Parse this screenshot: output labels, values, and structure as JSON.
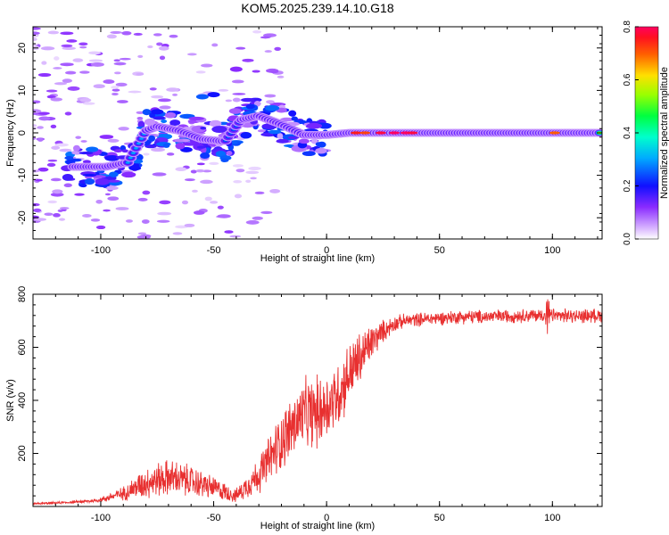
{
  "chart_data": [
    {
      "type": "heatmap",
      "title": "KOM5.2025.239.14.10.G18",
      "xlabel": "Height of straight line (km)",
      "ylabel": "Frequency (Hz)",
      "xlim": [
        -130,
        122
      ],
      "ylim": [
        -25,
        25
      ],
      "xticks": [
        -100,
        -50,
        0,
        50,
        100
      ],
      "yticks": [
        -20,
        -10,
        0,
        10,
        20
      ],
      "colorbar": {
        "label": "Normalized spectral amplitude",
        "range": [
          0,
          0.8
        ],
        "ticks": [
          "0.0",
          "0.2",
          "0.4",
          "0.6",
          "0.8"
        ]
      },
      "ridge": [
        {
          "x": -110,
          "y": -8.0,
          "amp": 0.35
        },
        {
          "x": -98,
          "y": -8.0,
          "amp": 0.35
        },
        {
          "x": -88,
          "y": -7.0,
          "amp": 0.3
        },
        {
          "x": -80,
          "y": 0.5,
          "amp": 0.3
        },
        {
          "x": -75,
          "y": 1.5,
          "amp": 0.35
        },
        {
          "x": -65,
          "y": 0.5,
          "amp": 0.3
        },
        {
          "x": -55,
          "y": -1.5,
          "amp": 0.3
        },
        {
          "x": -45,
          "y": -2.0,
          "amp": 0.25
        },
        {
          "x": -38,
          "y": 3.0,
          "amp": 0.25
        },
        {
          "x": -30,
          "y": 4.0,
          "amp": 0.3
        },
        {
          "x": -20,
          "y": 2.0,
          "amp": 0.3
        },
        {
          "x": -10,
          "y": -0.5,
          "amp": 0.35
        },
        {
          "x": 0,
          "y": -0.5,
          "amp": 0.35
        },
        {
          "x": 10,
          "y": 0.0,
          "amp": 0.55
        },
        {
          "x": 20,
          "y": 0.0,
          "amp": 0.7
        },
        {
          "x": 30,
          "y": 0.0,
          "amp": 0.75
        },
        {
          "x": 40,
          "y": 0.0,
          "amp": 0.65
        },
        {
          "x": 60,
          "y": 0.0,
          "amp": 0.5
        },
        {
          "x": 80,
          "y": 0.0,
          "amp": 0.5
        },
        {
          "x": 100,
          "y": 0.0,
          "amp": 0.6
        },
        {
          "x": 120,
          "y": 0.0,
          "amp": 0.55
        }
      ]
    },
    {
      "type": "line",
      "xlabel": "Height of straight line (km)",
      "ylabel": "SNR (v/v)",
      "xlim": [
        -130,
        122
      ],
      "ylim": [
        0,
        800
      ],
      "xticks": [
        -100,
        -50,
        0,
        50,
        100
      ],
      "yticks": [
        200,
        400,
        600,
        800
      ],
      "color": "#e83030",
      "series": [
        {
          "name": "SNR",
          "x": [
            -130,
            -115,
            -105,
            -100,
            -90,
            -80,
            -70,
            -60,
            -50,
            -40,
            -30,
            -25,
            -20,
            -15,
            -10,
            -5,
            0,
            5,
            10,
            15,
            20,
            25,
            30,
            35,
            40,
            50,
            60,
            70,
            80,
            90,
            100,
            110,
            122
          ],
          "mean": [
            10,
            15,
            20,
            25,
            50,
            90,
            110,
            95,
            70,
            40,
            120,
            180,
            250,
            300,
            350,
            350,
            380,
            420,
            500,
            560,
            620,
            660,
            690,
            700,
            705,
            710,
            715,
            715,
            718,
            720,
            720,
            718,
            720
          ],
          "spread": [
            5,
            5,
            8,
            10,
            30,
            70,
            80,
            70,
            50,
            30,
            80,
            110,
            130,
            140,
            150,
            160,
            150,
            150,
            140,
            120,
            80,
            50,
            35,
            30,
            30,
            30,
            30,
            30,
            30,
            30,
            30,
            30,
            30
          ]
        }
      ]
    }
  ]
}
